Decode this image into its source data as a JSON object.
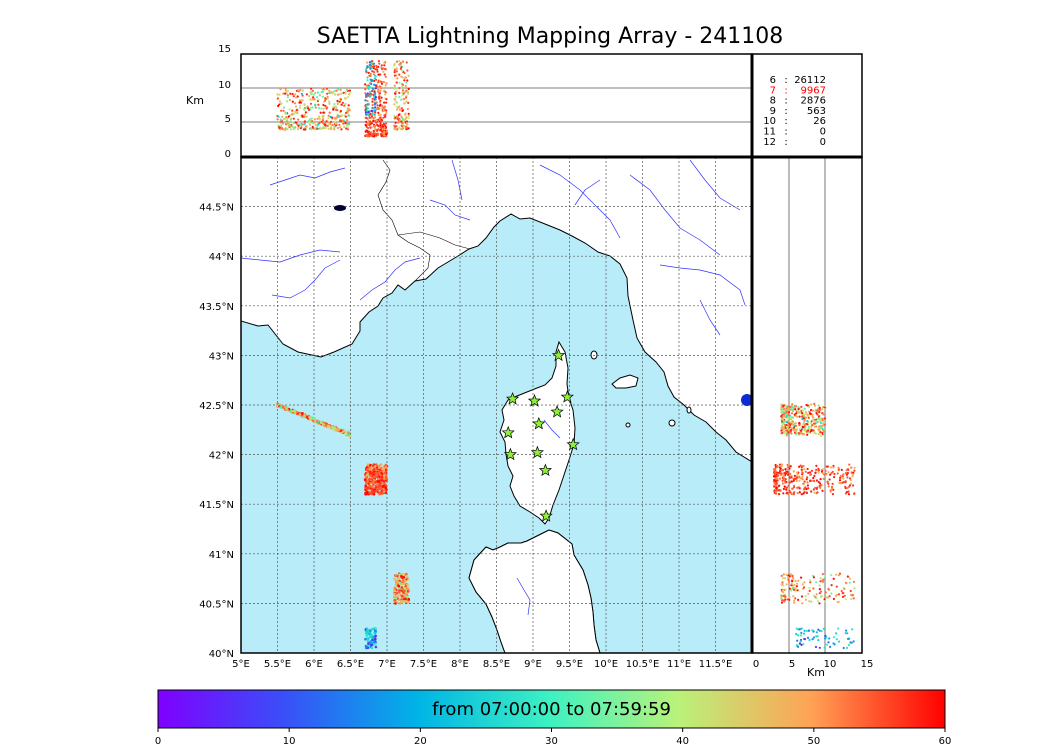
{
  "title": "SAETTA Lightning Mapping Array - 241108",
  "altitude_panel": {
    "ylabel": "Km",
    "yticks": [
      "0",
      "5",
      "10",
      "15"
    ]
  },
  "stations_table": [
    {
      "n": "6",
      "count": "26112",
      "highlight": false
    },
    {
      "n": "7",
      "count": "9967",
      "highlight": true
    },
    {
      "n": "8",
      "count": "2876",
      "highlight": false
    },
    {
      "n": "9",
      "count": "563",
      "highlight": false
    },
    {
      "n": "10",
      "count": "26",
      "highlight": false
    },
    {
      "n": "11",
      "count": "0",
      "highlight": false
    },
    {
      "n": "12",
      "count": "0",
      "highlight": false
    }
  ],
  "map": {
    "lon_labels": [
      "5°E",
      "5.5°E",
      "6°E",
      "6.5°E",
      "7°E",
      "7.5°E",
      "8°E",
      "8.5°E",
      "9°E",
      "9.5°E",
      "10°E",
      "10.5°E",
      "11°E",
      "11.5°E"
    ],
    "lat_labels": [
      "40°N",
      "40.5°N",
      "41°N",
      "41.5°N",
      "42°N",
      "42.5°N",
      "43°N",
      "43.5°N",
      "44°N",
      "44.5°N"
    ],
    "sea_color": "#b8ecf8",
    "station_color": "#8ef03a",
    "stations": [
      {
        "lon": 9.35,
        "lat": 43.0
      },
      {
        "lon": 8.72,
        "lat": 42.56
      },
      {
        "lon": 9.02,
        "lat": 42.54
      },
      {
        "lon": 9.47,
        "lat": 42.58
      },
      {
        "lon": 9.33,
        "lat": 42.43
      },
      {
        "lon": 9.08,
        "lat": 42.31
      },
      {
        "lon": 8.66,
        "lat": 42.22
      },
      {
        "lon": 9.55,
        "lat": 42.1
      },
      {
        "lon": 8.69,
        "lat": 42.0
      },
      {
        "lon": 9.06,
        "lat": 42.02
      },
      {
        "lon": 9.17,
        "lat": 41.84
      },
      {
        "lon": 9.18,
        "lat": 41.38
      }
    ]
  },
  "altitude_lat_panel": {
    "xlabel": "Km",
    "xticks": [
      "0",
      "5",
      "10",
      "15"
    ]
  },
  "colorbar": {
    "label": "from 07:00:00 to 07:59:59",
    "ticks": [
      "0",
      "10",
      "20",
      "30",
      "40",
      "50",
      "60"
    ],
    "colormap": "rainbow"
  },
  "chart_data": {
    "type": "scatter",
    "x_range_lon": [
      5,
      12
    ],
    "y_range_lat": [
      40,
      45
    ],
    "altitude_range_km": [
      0,
      15
    ],
    "time_range_min": [
      0,
      60
    ],
    "clusters": [
      {
        "lon": [
          5.5,
          6.5
        ],
        "lat": [
          42.2,
          42.5
        ],
        "alt_km": [
          4,
          10
        ],
        "time_min": [
          20,
          60
        ]
      },
      {
        "lon": [
          6.7,
          7.0
        ],
        "lat": [
          41.6,
          41.9
        ],
        "alt_km": [
          3,
          14
        ],
        "time_min": [
          45,
          60
        ]
      },
      {
        "lon": [
          7.1,
          7.3
        ],
        "lat": [
          40.5,
          40.8
        ],
        "alt_km": [
          4,
          14
        ],
        "time_min": [
          30,
          60
        ]
      },
      {
        "lon": [
          6.7,
          6.85
        ],
        "lat": [
          40.05,
          40.25
        ],
        "alt_km": [
          6,
          14
        ],
        "time_min": [
          0,
          30
        ]
      }
    ]
  }
}
